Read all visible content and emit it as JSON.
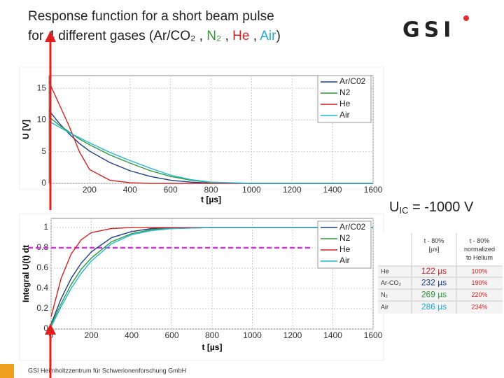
{
  "title_line1": "Response function for a short beam pulse",
  "title_line2": [
    {
      "text": "for 4 different gases (Ar/CO₂ , ",
      "color": "#222222"
    },
    {
      "text": "N₂",
      "color": "#2e9a3a"
    },
    {
      "text": " , ",
      "color": "#222222"
    },
    {
      "text": "He",
      "color": "#d62020"
    },
    {
      "text": " , ",
      "color": "#222222"
    },
    {
      "text": "Air",
      "color": "#22a8d8"
    },
    {
      "text": ")",
      "color": "#222222"
    }
  ],
  "logo": "GSI",
  "voltage": {
    "main": "U",
    "sub": "IC",
    "rest": " = -1000 V"
  },
  "footer": "GSI Helmholtzzentrum für Schwerionenforschung GmbH",
  "table": {
    "header": [
      "",
      "t - 80% [µs]",
      "t - 80% normalized to Helium"
    ],
    "rows": [
      [
        "He",
        "122 µs",
        "100%"
      ],
      [
        "Ar-CO₂",
        "232 µs",
        "190%"
      ],
      [
        "N₂",
        "269 µs",
        "220%"
      ],
      [
        "Air",
        "286 µs",
        "234%"
      ]
    ]
  },
  "chart_data": [
    {
      "type": "line",
      "ylabel": "U [V]",
      "xlabel": "t [µs]",
      "x": [
        0,
        50,
        100,
        150,
        200,
        300,
        400,
        500,
        600,
        700,
        800,
        1000,
        1200,
        1400,
        1600
      ],
      "series": [
        {
          "name": "Ar/C02",
          "color": "#1f3c88",
          "values": [
            11.5,
            9.5,
            7.8,
            6.3,
            5.1,
            3.3,
            2,
            1.1,
            0.5,
            0.2,
            0.05,
            0,
            0,
            0,
            0
          ]
        },
        {
          "name": "N2",
          "color": "#2e9a3a",
          "values": [
            10.5,
            9.2,
            8.1,
            7,
            6.1,
            4.5,
            3.2,
            2,
            1.1,
            0.5,
            0.15,
            0,
            0,
            0,
            0
          ]
        },
        {
          "name": "He",
          "color": "#d62020",
          "values": [
            16,
            12.5,
            9,
            5,
            2.2,
            0.5,
            0.1,
            0,
            0,
            0,
            0,
            0,
            0,
            0,
            0
          ]
        },
        {
          "name": "Air",
          "color": "#22b8d8",
          "values": [
            9.8,
            8.9,
            8,
            7.2,
            6.4,
            4.9,
            3.6,
            2.4,
            1.3,
            0.6,
            0.2,
            0,
            0,
            0,
            0
          ]
        }
      ],
      "xlim": [
        0,
        1600
      ],
      "xticks": [
        200,
        400,
        600,
        800,
        1000,
        1200,
        1400,
        1600
      ],
      "ylim": [
        0,
        17
      ],
      "yticks": [
        0,
        5,
        10,
        15
      ],
      "grid": true,
      "legend": "upper right"
    },
    {
      "type": "line",
      "ylabel": "Integral U(t) dt",
      "xlabel": "t [µs]",
      "x": [
        0,
        50,
        100,
        150,
        200,
        300,
        400,
        500,
        600,
        800,
        1000,
        1200,
        1400,
        1600
      ],
      "series": [
        {
          "name": "Ar/C02",
          "color": "#1f3c88",
          "values": [
            0.05,
            0.3,
            0.5,
            0.65,
            0.76,
            0.9,
            0.96,
            0.99,
            1,
            1,
            1,
            1,
            1,
            1
          ]
        },
        {
          "name": "N2",
          "color": "#2e9a3a",
          "values": [
            0.04,
            0.25,
            0.44,
            0.59,
            0.7,
            0.86,
            0.94,
            0.98,
            0.99,
            1,
            1,
            1,
            1,
            1
          ]
        },
        {
          "name": "He",
          "color": "#d62020",
          "values": [
            0.12,
            0.5,
            0.74,
            0.88,
            0.95,
            0.99,
            1,
            1,
            1,
            1,
            1,
            1,
            1,
            1
          ]
        },
        {
          "name": "Air",
          "color": "#22b8d8",
          "values": [
            0.02,
            0.22,
            0.4,
            0.55,
            0.67,
            0.84,
            0.93,
            0.97,
            0.99,
            1,
            1,
            1,
            1,
            1
          ]
        }
      ],
      "xlim": [
        0,
        1600
      ],
      "xticks": [
        0,
        200,
        400,
        600,
        800,
        1000,
        1200,
        1400,
        1600
      ],
      "ylim": [
        0,
        1.09
      ],
      "yticks": [
        0,
        0.2,
        0.4,
        0.6,
        0.8,
        1
      ],
      "grid": true,
      "legend": "upper right",
      "hline": 0.8,
      "hline_color": "#d633e0"
    }
  ]
}
